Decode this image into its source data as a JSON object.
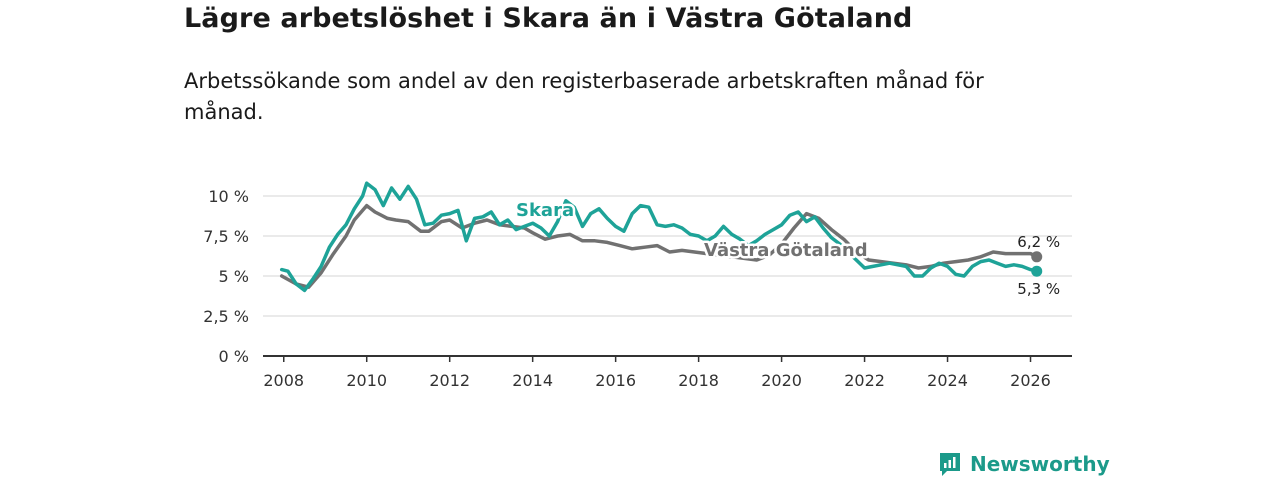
{
  "title": "Lägre arbetslöshet i Skara än i Västra Götaland",
  "subtitle": "Arbetssökande som andel av den registerbaserade arbetskraften månad för månad.",
  "brand": {
    "name": "Newsworthy",
    "color": "#1b9a8a"
  },
  "chart_data": {
    "type": "line",
    "x_unit": "year",
    "xlim": [
      2007.5,
      2027.0
    ],
    "ylim": [
      0,
      10
    ],
    "y_ticks": [
      {
        "value": 0,
        "label": "0 %"
      },
      {
        "value": 2.5,
        "label": "2,5 %"
      },
      {
        "value": 5,
        "label": "5 %"
      },
      {
        "value": 7.5,
        "label": "7,5 %"
      },
      {
        "value": 10,
        "label": "10 %"
      }
    ],
    "x_ticks": [
      {
        "value": 2008,
        "label": "2008"
      },
      {
        "value": 2010,
        "label": "2010"
      },
      {
        "value": 2012,
        "label": "2012"
      },
      {
        "value": 2014,
        "label": "2014"
      },
      {
        "value": 2016,
        "label": "2016"
      },
      {
        "value": 2018,
        "label": "2018"
      },
      {
        "value": 2020,
        "label": "2020"
      },
      {
        "value": 2022,
        "label": "2022"
      },
      {
        "value": 2024,
        "label": "2024"
      },
      {
        "value": 2026,
        "label": "2026"
      }
    ],
    "grid": true,
    "series": [
      {
        "name": "Västra Götaland",
        "color": "#717171",
        "end_label": "6,2 %",
        "x": [
          2007.95,
          2008.3,
          2008.6,
          2008.9,
          2009.2,
          2009.5,
          2009.7,
          2010.0,
          2010.2,
          2010.5,
          2010.7,
          2011.0,
          2011.3,
          2011.5,
          2011.8,
          2012.0,
          2012.3,
          2012.6,
          2012.9,
          2013.2,
          2013.5,
          2013.8,
          2014.0,
          2014.3,
          2014.6,
          2014.9,
          2015.2,
          2015.5,
          2015.8,
          2016.1,
          2016.4,
          2016.7,
          2017.0,
          2017.3,
          2017.6,
          2017.9,
          2018.2,
          2018.5,
          2018.8,
          2019.1,
          2019.4,
          2019.7,
          2020.0,
          2020.3,
          2020.6,
          2020.9,
          2021.2,
          2021.5,
          2021.8,
          2022.1,
          2022.4,
          2022.7,
          2023.0,
          2023.3,
          2023.6,
          2023.9,
          2024.2,
          2024.5,
          2024.8,
          2025.1,
          2025.4,
          2025.7,
          2026.0,
          2026.15
        ],
        "values": [
          5.0,
          4.5,
          4.3,
          5.2,
          6.4,
          7.5,
          8.5,
          9.4,
          9.0,
          8.6,
          8.5,
          8.4,
          7.8,
          7.8,
          8.4,
          8.5,
          8.0,
          8.3,
          8.5,
          8.2,
          8.1,
          8.0,
          7.7,
          7.3,
          7.5,
          7.6,
          7.2,
          7.2,
          7.1,
          6.9,
          6.7,
          6.8,
          6.9,
          6.5,
          6.6,
          6.5,
          6.4,
          6.3,
          6.2,
          6.1,
          6.0,
          6.3,
          7.0,
          8.0,
          8.9,
          8.6,
          7.9,
          7.3,
          6.5,
          6.0,
          5.9,
          5.8,
          5.7,
          5.5,
          5.6,
          5.8,
          5.9,
          6.0,
          6.2,
          6.5,
          6.4,
          6.4,
          6.4,
          6.2
        ]
      },
      {
        "name": "Skara",
        "color": "#1ea398",
        "end_label": "5,3 %",
        "x": [
          2007.95,
          2008.1,
          2008.3,
          2008.5,
          2008.7,
          2008.9,
          2009.1,
          2009.3,
          2009.5,
          2009.7,
          2009.9,
          2010.0,
          2010.2,
          2010.4,
          2010.6,
          2010.8,
          2011.0,
          2011.2,
          2011.4,
          2011.6,
          2011.8,
          2012.0,
          2012.2,
          2012.4,
          2012.6,
          2012.8,
          2013.0,
          2013.2,
          2013.4,
          2013.6,
          2013.8,
          2014.0,
          2014.2,
          2014.4,
          2014.6,
          2014.8,
          2015.0,
          2015.2,
          2015.4,
          2015.6,
          2015.8,
          2016.0,
          2016.2,
          2016.4,
          2016.6,
          2016.8,
          2017.0,
          2017.2,
          2017.4,
          2017.6,
          2017.8,
          2018.0,
          2018.2,
          2018.4,
          2018.6,
          2018.8,
          2019.0,
          2019.2,
          2019.4,
          2019.6,
          2019.8,
          2020.0,
          2020.2,
          2020.4,
          2020.6,
          2020.8,
          2021.0,
          2021.2,
          2021.4,
          2021.6,
          2021.8,
          2022.0,
          2022.2,
          2022.4,
          2022.6,
          2022.8,
          2023.0,
          2023.2,
          2023.4,
          2023.6,
          2023.8,
          2024.0,
          2024.2,
          2024.4,
          2024.6,
          2024.8,
          2025.0,
          2025.2,
          2025.4,
          2025.6,
          2025.8,
          2026.0,
          2026.15
        ],
        "values": [
          5.4,
          5.3,
          4.5,
          4.1,
          4.8,
          5.6,
          6.8,
          7.6,
          8.2,
          9.2,
          10.0,
          10.8,
          10.4,
          9.4,
          10.5,
          9.8,
          10.6,
          9.8,
          8.2,
          8.3,
          8.8,
          8.9,
          9.1,
          7.2,
          8.6,
          8.7,
          9.0,
          8.2,
          8.5,
          7.9,
          8.1,
          8.3,
          8.0,
          7.5,
          8.4,
          9.7,
          9.3,
          8.1,
          8.9,
          9.2,
          8.6,
          8.1,
          7.8,
          8.9,
          9.4,
          9.3,
          8.2,
          8.1,
          8.2,
          8.0,
          7.6,
          7.5,
          7.2,
          7.5,
          8.1,
          7.6,
          7.3,
          6.9,
          7.2,
          7.6,
          7.9,
          8.2,
          8.8,
          9.0,
          8.4,
          8.7,
          8.0,
          7.4,
          7.0,
          6.5,
          6.0,
          5.5,
          5.6,
          5.7,
          5.8,
          5.7,
          5.6,
          5.0,
          5.0,
          5.5,
          5.8,
          5.6,
          5.1,
          5.0,
          5.6,
          5.9,
          6.0,
          5.8,
          5.6,
          5.7,
          5.6,
          5.4,
          5.3
        ]
      }
    ]
  }
}
